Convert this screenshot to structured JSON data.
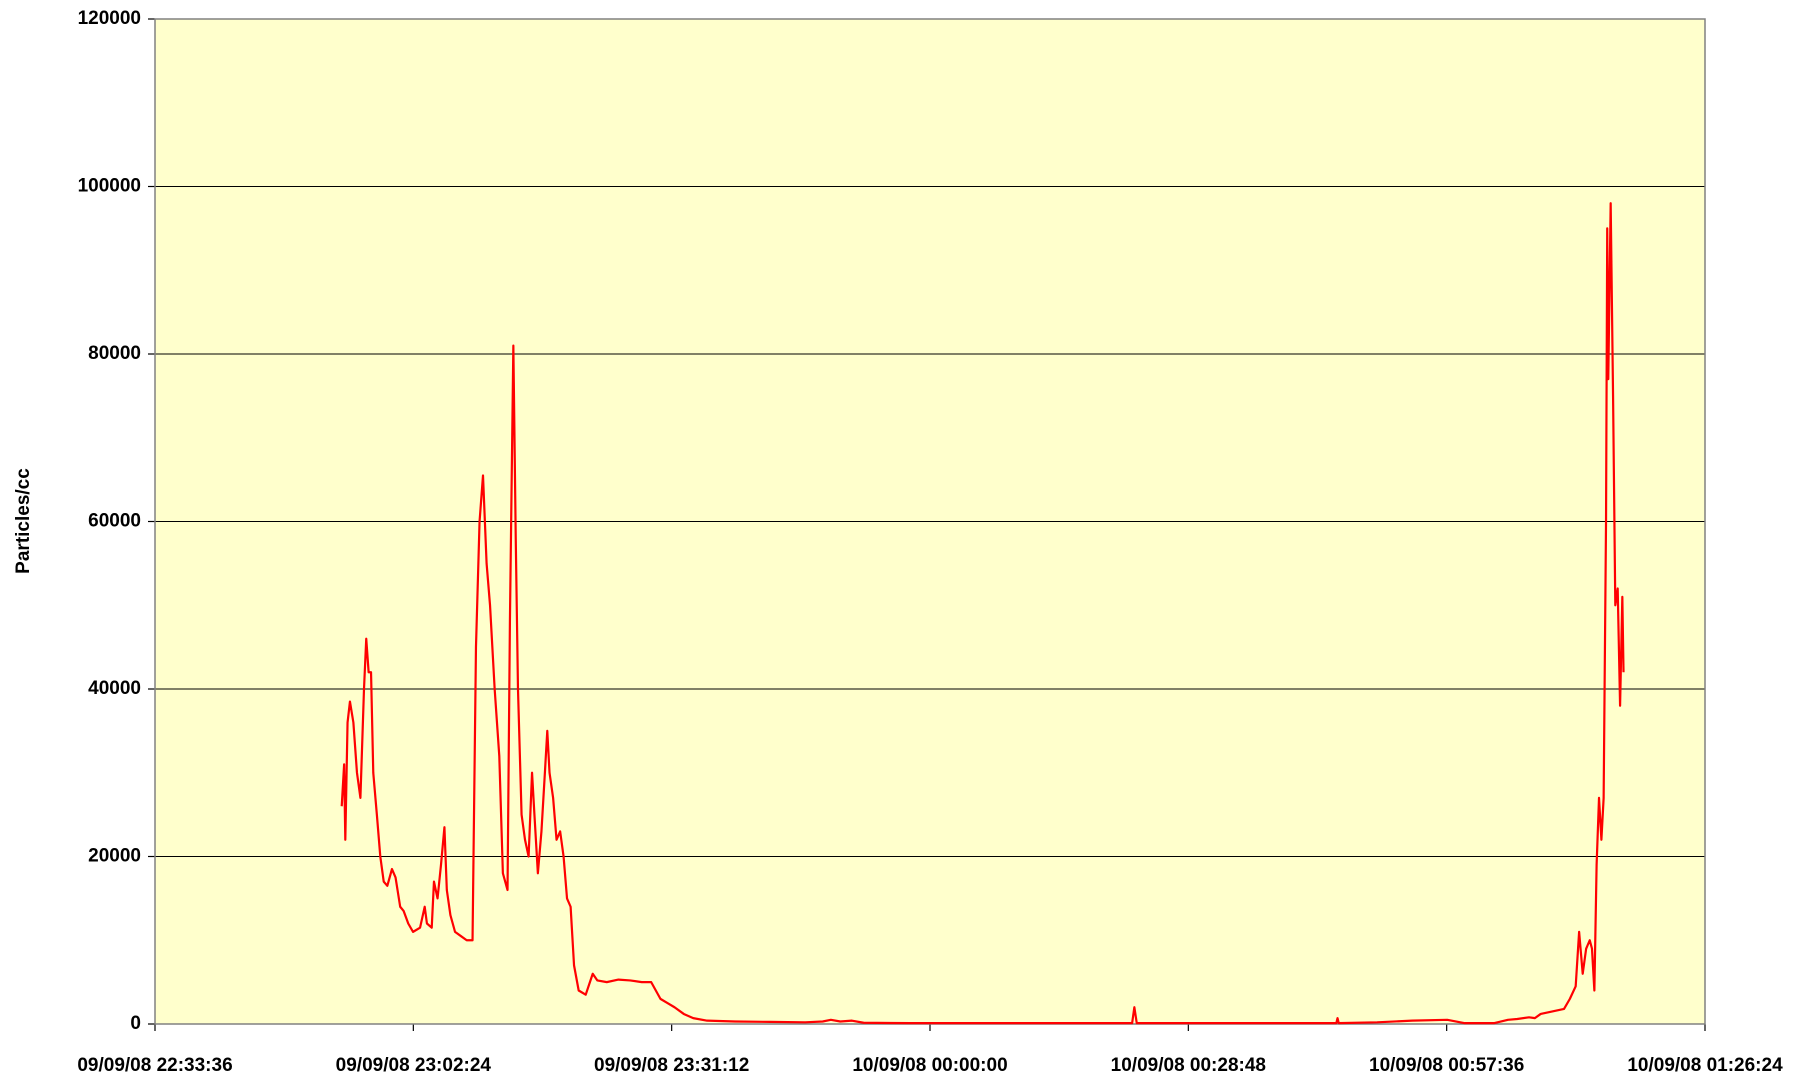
{
  "chart_data": {
    "type": "line",
    "y_label": "Particles/cc",
    "color": "#ff0000",
    "background": "#ffffcc",
    "grid": true,
    "xlim": [
      "09/09/08 22:33:36",
      "10/09/08 01:26:24"
    ],
    "xticks": [
      "09/09/08 22:33:36",
      "09/09/08 23:02:24",
      "09/09/08 23:31:12",
      "10/09/08 00:00:00",
      "10/09/08 00:28:48",
      "10/09/08 00:57:36",
      "10/09/08 01:26:24"
    ],
    "ylim": [
      0,
      120000
    ],
    "yticks": [
      0,
      20000,
      40000,
      60000,
      80000,
      100000,
      120000
    ],
    "x": [
      "09/09/08 22:54:25",
      "09/09/08 22:54:41",
      "09/09/08 22:54:49",
      "09/09/08 22:55:04",
      "09/09/08 22:55:20",
      "09/09/08 22:55:43",
      "09/09/08 22:56:07",
      "09/09/08 22:56:30",
      "09/09/08 22:56:54",
      "09/09/08 22:57:09",
      "09/09/08 22:57:25",
      "09/09/08 22:57:41",
      "09/09/08 22:57:56",
      "09/09/08 22:58:20",
      "09/09/08 22:58:43",
      "09/09/08 22:59:06",
      "09/09/08 22:59:30",
      "09/09/08 23:00:01",
      "09/09/08 23:00:25",
      "09/09/08 23:00:56",
      "09/09/08 23:01:19",
      "09/09/08 23:01:50",
      "09/09/08 23:02:22",
      "09/09/08 23:03:09",
      "09/09/08 23:03:40",
      "09/09/08 23:03:55",
      "09/09/08 23:04:27",
      "09/09/08 23:04:42",
      "09/09/08 23:05:06",
      "09/09/08 23:05:29",
      "09/09/08 23:05:52",
      "09/09/08 23:06:08",
      "09/09/08 23:06:32",
      "09/09/08 23:07:03",
      "09/09/08 23:07:42",
      "09/09/08 23:08:21",
      "09/09/08 23:09:00",
      "09/09/08 23:09:23",
      "09/09/08 23:09:47",
      "09/09/08 23:10:10",
      "09/09/08 23:10:34",
      "09/09/08 23:10:57",
      "09/09/08 23:11:28",
      "09/09/08 23:11:59",
      "09/09/08 23:12:23",
      "09/09/08 23:12:54",
      "09/09/08 23:13:10",
      "09/09/08 23:13:33",
      "09/09/08 23:13:49",
      "09/09/08 23:14:04",
      "09/09/08 23:14:28",
      "09/09/08 23:14:51",
      "09/09/08 23:15:15",
      "09/09/08 23:15:38",
      "09/09/08 23:15:54",
      "09/09/08 23:16:17",
      "09/09/08 23:16:41",
      "09/09/08 23:17:04",
      "09/09/08 23:17:20",
      "09/09/08 23:17:35",
      "09/09/08 23:17:59",
      "09/09/08 23:18:22",
      "09/09/08 23:18:46",
      "09/09/08 23:19:09",
      "09/09/08 23:19:32",
      "09/09/08 23:19:56",
      "09/09/08 23:20:19",
      "09/09/08 23:20:50",
      "09/09/08 23:21:37",
      "09/09/08 23:22:24",
      "09/09/08 23:22:55",
      "09/09/08 23:23:58",
      "09/09/08 23:25:16",
      "09/09/08 23:26:34",
      "09/09/08 23:27:52",
      "09/09/08 23:28:55",
      "09/09/08 23:29:26",
      "09/09/08 23:29:57",
      "09/09/08 23:30:44",
      "09/09/08 23:31:31",
      "09/09/08 23:32:33",
      "09/09/08 23:33:36",
      "09/09/08 23:35:09",
      "09/09/08 23:38:17",
      "09/09/08 23:42:11",
      "09/09/08 23:46:05",
      "09/09/08 23:48:02",
      "09/09/08 23:48:57",
      "09/09/08 23:50:00",
      "09/09/08 23:51:18",
      "09/09/08 23:52:36",
      "09/09/08 23:57:48",
      "10/09/08 00:05:37",
      "10/09/08 00:13:25",
      "10/09/08 00:22:32",
      "10/09/08 00:22:47",
      "10/09/08 00:23:03",
      "10/09/08 00:32:56",
      "10/09/08 00:39:27",
      "10/09/08 00:45:18",
      "10/09/08 00:45:26",
      "10/09/08 00:45:34",
      "10/09/08 00:49:51",
      "10/09/08 00:53:46",
      "10/09/08 00:57:40",
      "10/09/08 00:59:37",
      "10/09/08 01:02:52",
      "10/09/08 01:04:26",
      "10/09/08 01:05:28",
      "10/09/08 01:06:47",
      "10/09/08 01:07:26",
      "10/09/08 01:08:05",
      "10/09/08 01:09:23",
      "10/09/08 01:10:41",
      "10/09/08 01:11:20",
      "10/09/08 01:11:59",
      "10/09/08 01:12:22",
      "10/09/08 01:12:46",
      "10/09/08 01:13:09",
      "10/09/08 01:13:33",
      "10/09/08 01:13:48",
      "10/09/08 01:14:04",
      "10/09/08 01:14:19",
      "10/09/08 01:14:35",
      "10/09/08 01:14:51",
      "10/09/08 01:15:06",
      "10/09/08 01:15:22",
      "10/09/08 01:15:30",
      "10/09/08 01:15:37",
      "10/09/08 01:15:53",
      "10/09/08 01:16:09",
      "10/09/08 01:16:24",
      "10/09/08 01:16:40",
      "10/09/08 01:16:56",
      "10/09/08 01:17:11",
      "10/09/08 01:17:19"
    ],
    "values": [
      26000,
      31000,
      22000,
      36000,
      38500,
      36000,
      30000,
      27000,
      40000,
      46000,
      42000,
      42000,
      30000,
      25000,
      20000,
      17000,
      16500,
      18500,
      17500,
      14000,
      13500,
      12000,
      11000,
      11500,
      14000,
      12000,
      11500,
      17000,
      15000,
      19000,
      23500,
      16000,
      13000,
      11000,
      10500,
      10000,
      10000,
      45000,
      60000,
      65500,
      55000,
      50000,
      40000,
      32000,
      18000,
      16000,
      48000,
      81000,
      58000,
      40000,
      25000,
      22000,
      20000,
      30000,
      25000,
      18000,
      23000,
      30000,
      35000,
      30000,
      27000,
      22000,
      23000,
      20000,
      15000,
      14000,
      7000,
      4000,
      3500,
      6000,
      5200,
      5000,
      5300,
      5200,
      5000,
      5000,
      4000,
      3000,
      2500,
      2000,
      1200,
      700,
      400,
      300,
      250,
      200,
      300,
      500,
      300,
      400,
      150,
      100,
      100,
      100,
      100,
      2000,
      100,
      100,
      100,
      100,
      700,
      100,
      200,
      400,
      500,
      100,
      100,
      500,
      600,
      800,
      700,
      1200,
      1500,
      1800,
      3000,
      4500,
      11000,
      6000,
      9000,
      10000,
      9000,
      4000,
      19000,
      27000,
      22000,
      27000,
      60000,
      95000,
      77000,
      98000,
      75000,
      50000,
      52000,
      38000,
      51000,
      42000
    ]
  }
}
